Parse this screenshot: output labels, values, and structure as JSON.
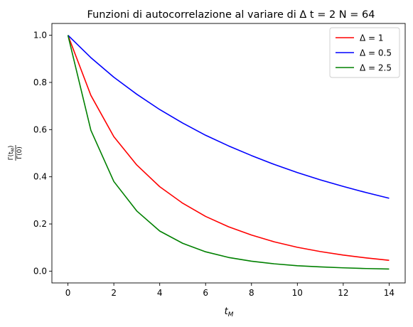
{
  "chart_data": {
    "type": "line",
    "title": "Funzioni di autocorrelazione al variare di Δ t = 2 N = 64",
    "xlabel": "t_M",
    "ylabel": "Γ(t_M) / Γ(0)",
    "xlim": [
      -0.7,
      14.7
    ],
    "ylim": [
      -0.05,
      1.05
    ],
    "xticks": [
      "0",
      "2",
      "4",
      "6",
      "8",
      "10",
      "12",
      "14"
    ],
    "yticks": [
      "0.0",
      "0.2",
      "0.4",
      "0.6",
      "0.8",
      "1.0"
    ],
    "legend_position": "top-right",
    "grid": false,
    "x": [
      0,
      1,
      2,
      3,
      4,
      5,
      6,
      7,
      8,
      9,
      10,
      11,
      12,
      13,
      14
    ],
    "series": [
      {
        "name": "Δ = 1",
        "color": "#ff0000",
        "values": [
          1.0,
          0.745,
          0.57,
          0.45,
          0.358,
          0.288,
          0.232,
          0.188,
          0.153,
          0.124,
          0.101,
          0.083,
          0.068,
          0.056,
          0.046
        ]
      },
      {
        "name": "Δ = 0.5",
        "color": "#0000ff",
        "values": [
          1.0,
          0.905,
          0.822,
          0.75,
          0.685,
          0.628,
          0.576,
          0.531,
          0.49,
          0.452,
          0.418,
          0.387,
          0.359,
          0.333,
          0.309
        ]
      },
      {
        "name": "Δ = 2.5",
        "color": "#008000",
        "values": [
          1.0,
          0.597,
          0.38,
          0.255,
          0.17,
          0.118,
          0.082,
          0.058,
          0.042,
          0.031,
          0.023,
          0.018,
          0.014,
          0.011,
          0.009
        ]
      }
    ]
  }
}
